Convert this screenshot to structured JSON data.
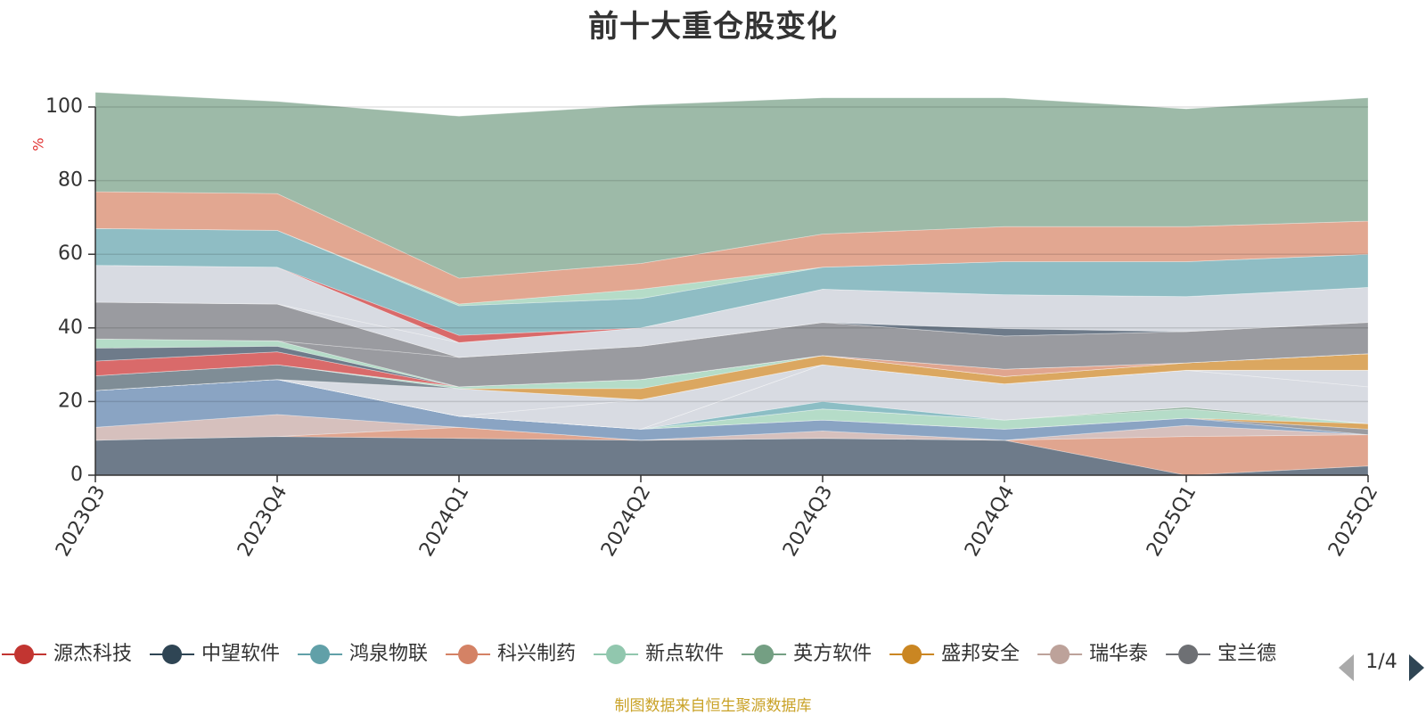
{
  "title": "前十大重仓股变化",
  "source_note": "制图数据来自恒生聚源数据库",
  "legend_page": "1/4",
  "chart_data": {
    "type": "area",
    "stacked": true,
    "title": "前十大重仓股变化",
    "ylabel": "%",
    "ylim": [
      0,
      100
    ],
    "yticks": [
      0,
      20,
      40,
      60,
      80,
      100
    ],
    "grid": true,
    "legend_placement": "bottom",
    "categories": [
      "2023Q3",
      "2023Q4",
      "2024Q1",
      "2024Q2",
      "2024Q3",
      "2024Q4",
      "2025Q1",
      "2025Q2"
    ],
    "series": [
      {
        "values": [
          9.5,
          10.5,
          10.0,
          9.5,
          10.0,
          9.5,
          0.0,
          2.5
        ],
        "color": "#6e7b8a"
      },
      {
        "values": [
          0.0,
          0.0,
          3.0,
          0.0,
          0.0,
          0.0,
          10.5,
          8.5
        ],
        "color": "#e0a58f"
      },
      {
        "values": [
          3.5,
          6.0,
          0.0,
          0.0,
          2.0,
          0.0,
          3.0,
          0.0
        ],
        "color": "#d6c0bd"
      },
      {
        "values": [
          10.0,
          9.5,
          3.0,
          3.0,
          3.0,
          3.0,
          2.0,
          0.0
        ],
        "color": "#8aa4c3"
      },
      {
        "values": [
          0.0,
          0.0,
          0.0,
          0.0,
          0.0,
          0.0,
          0.0,
          1.5
        ],
        "color": "#9a9ba0"
      },
      {
        "values": [
          0.0,
          0.0,
          0.0,
          0.0,
          0.0,
          0.0,
          0.0,
          1.5
        ],
        "color": "#dba760"
      },
      {
        "values": [
          0.0,
          0.0,
          0.0,
          0.0,
          3.0,
          2.5,
          2.5,
          0.0
        ],
        "color": "#b5dcc8"
      },
      {
        "values": [
          0.0,
          0.0,
          0.0,
          0.0,
          0.0,
          0.0,
          0.5,
          0.0
        ],
        "color": "#93b3a0"
      },
      {
        "values": [
          0.0,
          0.0,
          0.0,
          0.0,
          2.0,
          0.0,
          0.0,
          0.0
        ],
        "color": "#8cbec5"
      },
      {
        "values": [
          0.0,
          0.0,
          0.0,
          0.0,
          10.0,
          9.8,
          10.0,
          10.0
        ],
        "color": "#d8dbe2"
      },
      {
        "values": [
          0.0,
          0.0,
          0.0,
          0.0,
          0.0,
          0.0,
          0.0,
          4.5
        ],
        "color": "#d8dbe2"
      },
      {
        "values": [
          0.0,
          0.0,
          0.0,
          8.0,
          0.0,
          0.0,
          0.0,
          0.0
        ],
        "color": "#d8dbe2"
      },
      {
        "values": [
          0.0,
          0.0,
          7.5,
          0.0,
          0.0,
          0.0,
          0.0,
          0.0
        ],
        "color": "#d8dbe2"
      },
      {
        "values": [
          4.0,
          4.0,
          0.0,
          0.0,
          0.0,
          0.0,
          0.0,
          0.0
        ],
        "color": "#7f8d96"
      },
      {
        "values": [
          0.0,
          0.0,
          0.0,
          3.0,
          2.5,
          2.0,
          2.0,
          4.5
        ],
        "color": "#dba760"
      },
      {
        "values": [
          0.0,
          0.0,
          0.5,
          2.5,
          0.0,
          0.0,
          0.0,
          0.0
        ],
        "color": "#b5dcc8"
      },
      {
        "values": [
          4.0,
          3.5,
          0.0,
          0.0,
          0.0,
          0.0,
          0.0,
          0.0
        ],
        "color": "#d96a6a"
      },
      {
        "values": [
          0.0,
          0.0,
          0.0,
          0.0,
          0.0,
          2.0,
          0.0,
          0.0
        ],
        "color": "#e0a58f"
      },
      {
        "values": [
          3.5,
          1.5,
          0.0,
          0.0,
          0.0,
          0.0,
          0.0,
          0.0
        ],
        "color": "#6e7b8a"
      },
      {
        "values": [
          2.5,
          1.5,
          0.0,
          0.0,
          0.0,
          0.0,
          0.0,
          0.0
        ],
        "color": "#b5dcc8"
      },
      {
        "values": [
          0.0,
          0.0,
          8.0,
          9.0,
          9.0,
          9.0,
          8.5,
          8.5
        ],
        "color": "#9a9ba0"
      },
      {
        "values": [
          10.0,
          10.0,
          0.0,
          0.0,
          0.0,
          0.0,
          0.0,
          0.0
        ],
        "color": "#9a9ba0"
      },
      {
        "values": [
          0.0,
          0.0,
          0.0,
          0.0,
          0.0,
          2.0,
          0.0,
          0.0
        ],
        "color": "#6e7b8a"
      },
      {
        "values": [
          0.0,
          0.0,
          4.0,
          5.0,
          9.0,
          9.2,
          9.5,
          9.5
        ],
        "color": "#d8dbe2"
      },
      {
        "values": [
          10.0,
          10.0,
          0.0,
          0.0,
          0.0,
          0.0,
          0.0,
          0.0
        ],
        "color": "#d8dbe2"
      },
      {
        "values": [
          0.0,
          0.0,
          2.0,
          0.0,
          0.0,
          0.0,
          0.0,
          0.0
        ],
        "color": "#d96a6a"
      },
      {
        "values": [
          10.0,
          10.0,
          8.0,
          8.0,
          6.0,
          9.0,
          9.5,
          9.0
        ],
        "color": "#8fbdc4"
      },
      {
        "values": [
          0.0,
          0.0,
          0.5,
          2.5,
          0.0,
          0.0,
          0.0,
          0.0
        ],
        "color": "#b5dcc8"
      },
      {
        "values": [
          10.0,
          10.0,
          7.0,
          7.0,
          9.0,
          9.5,
          9.5,
          9.0
        ],
        "color": "#e2a791"
      },
      {
        "values": [
          27.0,
          25.0,
          44.0,
          43.0,
          37.0,
          35.0,
          32.0,
          33.5
        ],
        "color": "#9dbaa8"
      }
    ]
  },
  "legend": {
    "items": [
      {
        "label": "源杰科技",
        "color": "#c23531"
      },
      {
        "label": "中望软件",
        "color": "#2f4554"
      },
      {
        "label": "鸿泉物联",
        "color": "#61a0a8"
      },
      {
        "label": "科兴制药",
        "color": "#d48265"
      },
      {
        "label": "新点软件",
        "color": "#91c7ae"
      },
      {
        "label": "英方软件",
        "color": "#749f83"
      },
      {
        "label": "盛邦安全",
        "color": "#ca8622"
      },
      {
        "label": "瑞华泰",
        "color": "#bda29a"
      },
      {
        "label": "宝兰德",
        "color": "#6e7074"
      }
    ]
  }
}
